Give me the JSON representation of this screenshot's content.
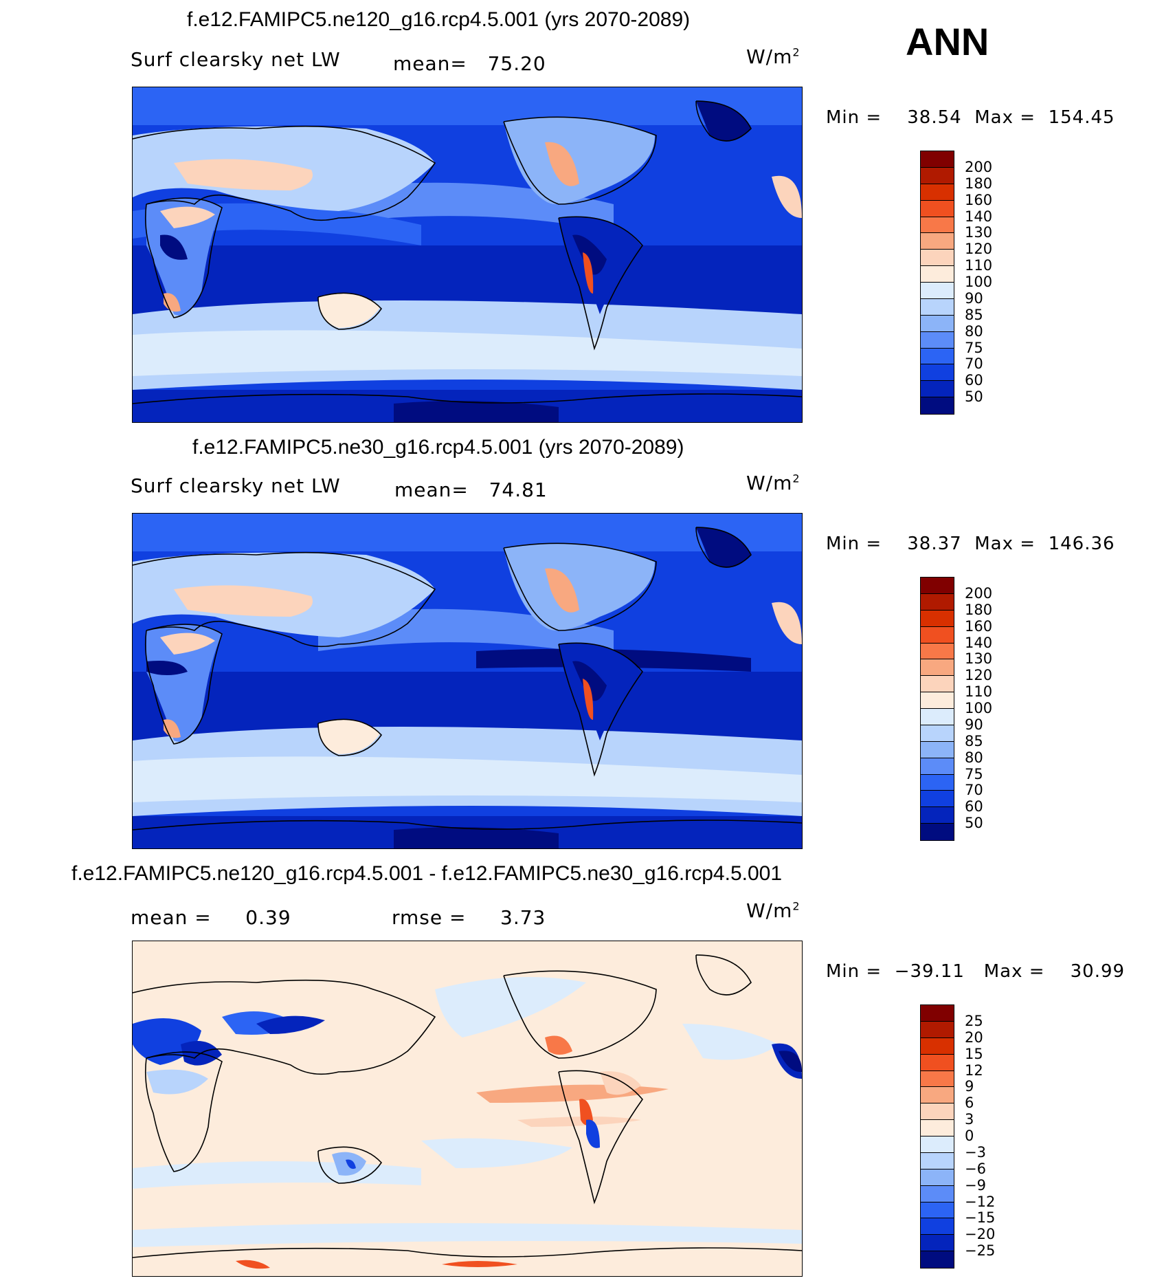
{
  "season": "ANN",
  "panels": [
    {
      "title": "f.e12.FAMIPC5.ne120_g16.rcp4.5.001 (yrs 2070-2089)",
      "variable": "Surf clearsky net LW",
      "stat1_label": "mean=",
      "stat1_value": "75.20",
      "units_base": "W/m",
      "units_exp": "2",
      "min_label": "Min =",
      "min_value": "38.54",
      "max_label": "Max =",
      "max_value": "154.45",
      "colorbar": {
        "levels": [
          "200",
          "180",
          "160",
          "140",
          "130",
          "120",
          "110",
          "100",
          "90",
          "85",
          "80",
          "75",
          "70",
          "60",
          "50"
        ],
        "colors": [
          "#800000",
          "#b01a00",
          "#d83000",
          "#f05020",
          "#f87848",
          "#f8a880",
          "#fcd4bc",
          "#fdecdc",
          "#dcecfc",
          "#b8d4fc",
          "#8cb4f8",
          "#5c8cf8",
          "#2c64f4",
          "#1040e0",
          "#0424bc",
          "#000c80"
        ]
      }
    },
    {
      "title": "f.e12.FAMIPC5.ne30_g16.rcp4.5.001 (yrs 2070-2089)",
      "variable": "Surf clearsky net LW",
      "stat1_label": "mean=",
      "stat1_value": "74.81",
      "units_base": "W/m",
      "units_exp": "2",
      "min_label": "Min =",
      "min_value": "38.37",
      "max_label": "Max =",
      "max_value": "146.36",
      "colorbar": {
        "levels": [
          "200",
          "180",
          "160",
          "140",
          "130",
          "120",
          "110",
          "100",
          "90",
          "85",
          "80",
          "75",
          "70",
          "60",
          "50"
        ],
        "colors": [
          "#800000",
          "#b01a00",
          "#d83000",
          "#f05020",
          "#f87848",
          "#f8a880",
          "#fcd4bc",
          "#fdecdc",
          "#dcecfc",
          "#b8d4fc",
          "#8cb4f8",
          "#5c8cf8",
          "#2c64f4",
          "#1040e0",
          "#0424bc",
          "#000c80"
        ]
      }
    },
    {
      "title": "f.e12.FAMIPC5.ne120_g16.rcp4.5.001 - f.e12.FAMIPC5.ne30_g16.rcp4.5.001",
      "stat1_label": "mean =",
      "stat1_value": "0.39",
      "stat2_label": "rmse =",
      "stat2_value": "3.73",
      "units_base": "W/m",
      "units_exp": "2",
      "min_label": "Min =",
      "min_value": "−39.11",
      "max_label": "Max =",
      "max_value": "30.99",
      "colorbar": {
        "levels": [
          "25",
          "20",
          "15",
          "12",
          "9",
          "6",
          "3",
          "0",
          "−3",
          "−6",
          "−9",
          "−12",
          "−15",
          "−20",
          "−25"
        ],
        "colors": [
          "#800000",
          "#b01a00",
          "#d83000",
          "#f05020",
          "#f87848",
          "#f8a880",
          "#fcd4bc",
          "#fdecdc",
          "#dcecfc",
          "#b8d4fc",
          "#8cb4f8",
          "#5c8cf8",
          "#2c64f4",
          "#1040e0",
          "#0424bc",
          "#000c80"
        ]
      }
    }
  ]
}
